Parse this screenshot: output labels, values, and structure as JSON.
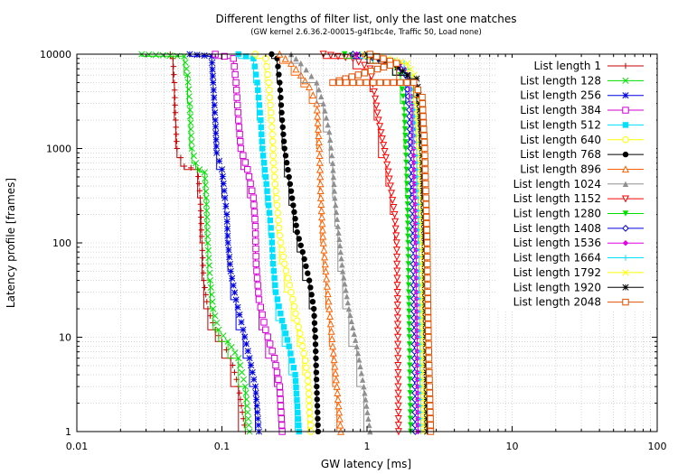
{
  "chart_data": {
    "type": "line",
    "title": "Different lengths of filter list, only the last one matches",
    "subtitle": "(GW kernel 2.6.36.2-00015-g4f1bc4e, Traffic 50, Load none)",
    "xlabel": "GW latency [ms]",
    "ylabel": "Latency profile [frames]",
    "x_scale": "log",
    "y_scale": "log",
    "xlim": [
      0.01,
      100
    ],
    "ylim": [
      1,
      10000
    ],
    "x_ticks": [
      "0.01",
      "0.1",
      "1",
      "10",
      "100"
    ],
    "y_ticks": [
      "1",
      "10",
      "100",
      "1000",
      "10000"
    ],
    "grid": true,
    "legend_position": "top-right",
    "series": [
      {
        "name": "List length 1",
        "color": "#c40000",
        "marker": "plus",
        "points": [
          [
            0.044,
            10000
          ],
          [
            0.046,
            9000
          ],
          [
            0.047,
            5000
          ],
          [
            0.048,
            2000
          ],
          [
            0.049,
            1000
          ],
          [
            0.052,
            800
          ],
          [
            0.055,
            650
          ],
          [
            0.068,
            600
          ],
          [
            0.071,
            300
          ],
          [
            0.073,
            100
          ],
          [
            0.075,
            40
          ],
          [
            0.08,
            20
          ],
          [
            0.09,
            12
          ],
          [
            0.1,
            9
          ],
          [
            0.115,
            6
          ],
          [
            0.13,
            3
          ],
          [
            0.145,
            1
          ]
        ]
      },
      {
        "name": "List length 128",
        "color": "#00e000",
        "marker": "x",
        "points": [
          [
            0.028,
            10000
          ],
          [
            0.055,
            9500
          ],
          [
            0.058,
            6000
          ],
          [
            0.06,
            3000
          ],
          [
            0.062,
            1000
          ],
          [
            0.066,
            700
          ],
          [
            0.07,
            600
          ],
          [
            0.076,
            560
          ],
          [
            0.078,
            300
          ],
          [
            0.08,
            100
          ],
          [
            0.083,
            40
          ],
          [
            0.087,
            20
          ],
          [
            0.095,
            12
          ],
          [
            0.11,
            9
          ],
          [
            0.13,
            6
          ],
          [
            0.145,
            3
          ],
          [
            0.155,
            1
          ]
        ]
      },
      {
        "name": "List length 256",
        "color": "#0000e0",
        "marker": "star",
        "points": [
          [
            0.06,
            10000
          ],
          [
            0.085,
            9500
          ],
          [
            0.087,
            5000
          ],
          [
            0.09,
            2000
          ],
          [
            0.092,
            900
          ],
          [
            0.1,
            600
          ],
          [
            0.105,
            300
          ],
          [
            0.108,
            200
          ],
          [
            0.11,
            100
          ],
          [
            0.115,
            50
          ],
          [
            0.125,
            25
          ],
          [
            0.14,
            12
          ],
          [
            0.155,
            6
          ],
          [
            0.17,
            3
          ],
          [
            0.18,
            1
          ]
        ]
      },
      {
        "name": "List length 384",
        "color": "#d000d0",
        "marker": "square-open",
        "points": [
          [
            0.09,
            10000
          ],
          [
            0.12,
            9000
          ],
          [
            0.125,
            5000
          ],
          [
            0.13,
            2000
          ],
          [
            0.135,
            1000
          ],
          [
            0.15,
            600
          ],
          [
            0.165,
            300
          ],
          [
            0.17,
            150
          ],
          [
            0.172,
            60
          ],
          [
            0.18,
            25
          ],
          [
            0.2,
            12
          ],
          [
            0.23,
            6
          ],
          [
            0.25,
            3
          ],
          [
            0.26,
            1
          ]
        ]
      },
      {
        "name": "List length 512",
        "color": "#00e0ff",
        "marker": "square",
        "points": [
          [
            0.13,
            10000
          ],
          [
            0.165,
            9000
          ],
          [
            0.175,
            5000
          ],
          [
            0.185,
            2000
          ],
          [
            0.19,
            1000
          ],
          [
            0.2,
            500
          ],
          [
            0.21,
            250
          ],
          [
            0.22,
            120
          ],
          [
            0.225,
            60
          ],
          [
            0.235,
            30
          ],
          [
            0.26,
            15
          ],
          [
            0.29,
            8
          ],
          [
            0.32,
            4
          ],
          [
            0.34,
            1
          ]
        ]
      },
      {
        "name": "List length 640",
        "color": "#ffff00",
        "marker": "circle-open",
        "points": [
          [
            0.17,
            10000
          ],
          [
            0.2,
            9000
          ],
          [
            0.21,
            5000
          ],
          [
            0.22,
            2000
          ],
          [
            0.225,
            1000
          ],
          [
            0.23,
            500
          ],
          [
            0.24,
            250
          ],
          [
            0.25,
            120
          ],
          [
            0.27,
            60
          ],
          [
            0.3,
            30
          ],
          [
            0.33,
            15
          ],
          [
            0.36,
            8
          ],
          [
            0.39,
            4
          ],
          [
            0.41,
            1
          ]
        ]
      },
      {
        "name": "List length 768",
        "color": "#000000",
        "marker": "circle",
        "points": [
          [
            0.22,
            10000
          ],
          [
            0.24,
            9000
          ],
          [
            0.25,
            5000
          ],
          [
            0.26,
            2000
          ],
          [
            0.27,
            1000
          ],
          [
            0.29,
            500
          ],
          [
            0.31,
            250
          ],
          [
            0.33,
            130
          ],
          [
            0.36,
            80
          ],
          [
            0.4,
            40
          ],
          [
            0.43,
            20
          ],
          [
            0.44,
            10
          ],
          [
            0.45,
            3
          ],
          [
            0.46,
            1
          ]
        ]
      },
      {
        "name": "List length 896",
        "color": "#ff6000",
        "marker": "triangle-open",
        "points": [
          [
            0.25,
            10000
          ],
          [
            0.3,
            8000
          ],
          [
            0.35,
            6000
          ],
          [
            0.4,
            4500
          ],
          [
            0.45,
            3000
          ],
          [
            0.47,
            1000
          ],
          [
            0.48,
            300
          ],
          [
            0.5,
            100
          ],
          [
            0.52,
            50
          ],
          [
            0.55,
            20
          ],
          [
            0.58,
            8
          ],
          [
            0.62,
            3
          ],
          [
            0.66,
            1
          ]
        ]
      },
      {
        "name": "List length 1024",
        "color": "#909090",
        "marker": "triangle",
        "points": [
          [
            0.3,
            10000
          ],
          [
            0.35,
            8000
          ],
          [
            0.45,
            5000
          ],
          [
            0.5,
            3000
          ],
          [
            0.55,
            1500
          ],
          [
            0.58,
            700
          ],
          [
            0.6,
            300
          ],
          [
            0.63,
            150
          ],
          [
            0.68,
            50
          ],
          [
            0.75,
            20
          ],
          [
            0.85,
            8
          ],
          [
            0.95,
            3
          ],
          [
            1.05,
            1
          ]
        ]
      },
      {
        "name": "List length 1152",
        "color": "#ff0000",
        "marker": "triangle-down-open",
        "points": [
          [
            0.5,
            10000
          ],
          [
            0.8,
            9000
          ],
          [
            1.05,
            7000
          ],
          [
            1.12,
            4000
          ],
          [
            1.2,
            2000
          ],
          [
            1.35,
            800
          ],
          [
            1.45,
            400
          ],
          [
            1.55,
            200
          ],
          [
            1.6,
            100
          ],
          [
            1.62,
            30
          ],
          [
            1.63,
            10
          ],
          [
            1.64,
            3
          ],
          [
            1.65,
            1
          ]
        ]
      },
      {
        "name": "List length 1280",
        "color": "#00e000",
        "marker": "triangle-down",
        "points": [
          [
            0.7,
            10000
          ],
          [
            1.1,
            9000
          ],
          [
            1.5,
            8000
          ],
          [
            1.7,
            6000
          ],
          [
            1.8,
            3000
          ],
          [
            1.85,
            1000
          ],
          [
            1.9,
            300
          ],
          [
            1.92,
            100
          ],
          [
            1.94,
            30
          ],
          [
            1.96,
            10
          ],
          [
            1.98,
            3
          ],
          [
            2.0,
            1
          ]
        ]
      },
      {
        "name": "List length 1408",
        "color": "#0000e0",
        "marker": "diamond-open",
        "points": [
          [
            0.8,
            10000
          ],
          [
            1.2,
            9000
          ],
          [
            1.6,
            8000
          ],
          [
            1.85,
            6000
          ],
          [
            1.95,
            3000
          ],
          [
            2.0,
            1000
          ],
          [
            2.05,
            300
          ],
          [
            2.08,
            100
          ],
          [
            2.1,
            30
          ],
          [
            2.12,
            10
          ],
          [
            2.14,
            3
          ],
          [
            2.15,
            1
          ]
        ]
      },
      {
        "name": "List length 1536",
        "color": "#e000e0",
        "marker": "diamond",
        "points": [
          [
            0.85,
            10000
          ],
          [
            1.3,
            9000
          ],
          [
            1.7,
            8000
          ],
          [
            1.95,
            6000
          ],
          [
            2.05,
            3000
          ],
          [
            2.1,
            1000
          ],
          [
            2.15,
            300
          ],
          [
            2.18,
            100
          ],
          [
            2.2,
            30
          ],
          [
            2.22,
            10
          ],
          [
            2.24,
            3
          ],
          [
            2.25,
            1
          ]
        ]
      },
      {
        "name": "List length 1664",
        "color": "#00e0ff",
        "marker": "plus",
        "points": [
          [
            0.9,
            10000
          ],
          [
            1.35,
            9000
          ],
          [
            1.8,
            8000
          ],
          [
            2.0,
            6000
          ],
          [
            2.1,
            3000
          ],
          [
            2.2,
            1000
          ],
          [
            2.25,
            300
          ],
          [
            2.28,
            100
          ],
          [
            2.3,
            30
          ],
          [
            2.32,
            10
          ],
          [
            2.34,
            3
          ],
          [
            2.35,
            1
          ]
        ]
      },
      {
        "name": "List length 1792",
        "color": "#ffff00",
        "marker": "x",
        "points": [
          [
            0.95,
            10000
          ],
          [
            1.4,
            9000
          ],
          [
            1.9,
            8000
          ],
          [
            2.1,
            6000
          ],
          [
            2.2,
            3000
          ],
          [
            2.3,
            1000
          ],
          [
            2.35,
            300
          ],
          [
            2.38,
            100
          ],
          [
            2.4,
            30
          ],
          [
            2.42,
            10
          ],
          [
            2.44,
            3
          ],
          [
            2.45,
            1
          ]
        ]
      },
      {
        "name": "List length 1920",
        "color": "#000000",
        "marker": "star",
        "points": [
          [
            1.0,
            10000
          ],
          [
            1.5,
            8000
          ],
          [
            1.9,
            6000
          ],
          [
            2.2,
            5500
          ],
          [
            2.3,
            3000
          ],
          [
            2.4,
            1000
          ],
          [
            2.45,
            300
          ],
          [
            2.5,
            100
          ],
          [
            2.52,
            30
          ],
          [
            2.55,
            10
          ],
          [
            2.58,
            3
          ],
          [
            2.6,
            1
          ]
        ]
      },
      {
        "name": "List length 2048",
        "color": "#e05000",
        "marker": "square-open",
        "points": [
          [
            1.05,
            10000
          ],
          [
            1.6,
            8000
          ],
          [
            0.58,
            5000
          ],
          [
            2.1,
            5000
          ],
          [
            2.4,
            3500
          ],
          [
            2.5,
            1000
          ],
          [
            2.55,
            300
          ],
          [
            2.6,
            100
          ],
          [
            2.62,
            30
          ],
          [
            2.65,
            10
          ],
          [
            2.7,
            3
          ],
          [
            2.75,
            1
          ]
        ]
      }
    ]
  }
}
